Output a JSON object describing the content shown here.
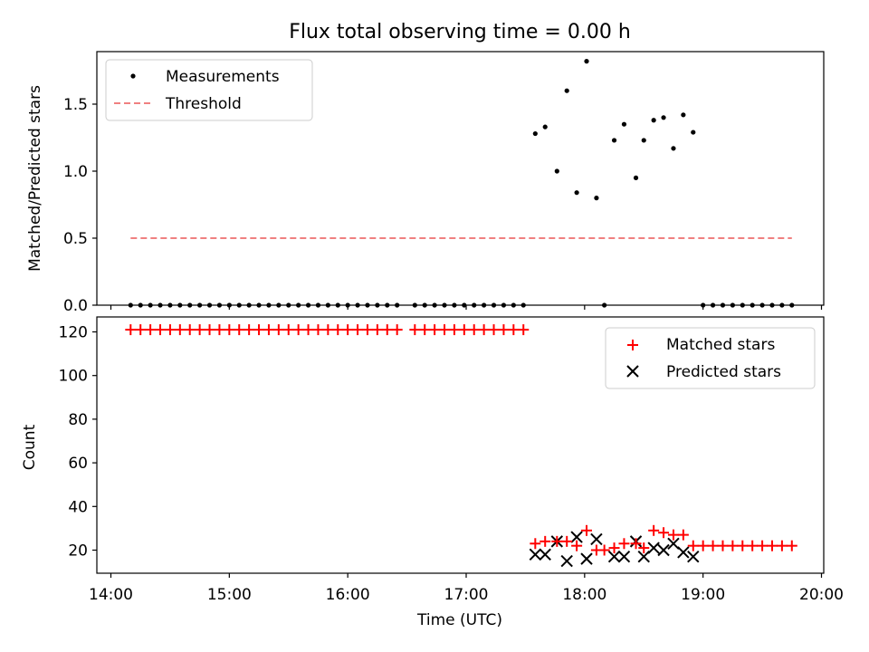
{
  "chart_data": [
    {
      "type": "scatter",
      "title": "Flux total observing time = 0.00 h",
      "xlabel": "",
      "ylabel": "Matched/Predicted stars",
      "xlim": [
        "14:00",
        "20:00"
      ],
      "ylim": [
        0,
        1.9
      ],
      "yticks": [
        0,
        0.5,
        1.0,
        1.5
      ],
      "ytick_labels": [
        "0.0",
        "0.5",
        "1.0",
        "1.5"
      ],
      "grid": false,
      "legend": "top-left",
      "series": [
        {
          "name": "Measurements",
          "style": "scatter",
          "marker": "dot",
          "color": "#000000",
          "points": [
            [
              "14:10",
              0
            ],
            [
              "14:15",
              0
            ],
            [
              "14:20",
              0
            ],
            [
              "14:25",
              0
            ],
            [
              "14:30",
              0
            ],
            [
              "14:35",
              0
            ],
            [
              "14:40",
              0
            ],
            [
              "14:45",
              0
            ],
            [
              "14:50",
              0
            ],
            [
              "14:55",
              0
            ],
            [
              "15:00",
              0
            ],
            [
              "15:05",
              0
            ],
            [
              "15:10",
              0
            ],
            [
              "15:15",
              0
            ],
            [
              "15:20",
              0
            ],
            [
              "15:25",
              0
            ],
            [
              "15:30",
              0
            ],
            [
              "15:35",
              0
            ],
            [
              "15:40",
              0
            ],
            [
              "15:45",
              0
            ],
            [
              "15:50",
              0
            ],
            [
              "15:55",
              0
            ],
            [
              "16:00",
              0
            ],
            [
              "16:05",
              0
            ],
            [
              "16:10",
              0
            ],
            [
              "16:15",
              0
            ],
            [
              "16:20",
              0
            ],
            [
              "16:25",
              0
            ],
            [
              "16:34",
              0
            ],
            [
              "16:39",
              0
            ],
            [
              "16:44",
              0
            ],
            [
              "16:49",
              0
            ],
            [
              "16:54",
              0
            ],
            [
              "16:59",
              0
            ],
            [
              "17:04",
              0
            ],
            [
              "17:09",
              0
            ],
            [
              "17:14",
              0
            ],
            [
              "17:19",
              0
            ],
            [
              "17:24",
              0
            ],
            [
              "17:29",
              0
            ],
            [
              "17:35",
              1.28
            ],
            [
              "17:40",
              1.33
            ],
            [
              "17:46",
              1.0
            ],
            [
              "17:51",
              1.6
            ],
            [
              "17:56",
              0.84
            ],
            [
              "18:01",
              1.82
            ],
            [
              "18:06",
              0.8
            ],
            [
              "18:10",
              0
            ],
            [
              "18:15",
              1.23
            ],
            [
              "18:20",
              1.35
            ],
            [
              "18:26",
              0.95
            ],
            [
              "18:30",
              1.23
            ],
            [
              "18:35",
              1.38
            ],
            [
              "18:40",
              1.4
            ],
            [
              "18:45",
              1.17
            ],
            [
              "18:50",
              1.42
            ],
            [
              "18:55",
              1.29
            ],
            [
              "19:00",
              0
            ],
            [
              "19:05",
              0
            ],
            [
              "19:10",
              0
            ],
            [
              "19:15",
              0
            ],
            [
              "19:20",
              0
            ],
            [
              "19:25",
              0
            ],
            [
              "19:30",
              0
            ],
            [
              "19:35",
              0
            ],
            [
              "19:40",
              0
            ],
            [
              "19:45",
              0
            ]
          ]
        },
        {
          "name": "Threshold",
          "style": "dashed-line",
          "color": "#f08080",
          "points": [
            [
              "14:10",
              0.5
            ],
            [
              "19:45",
              0.5
            ]
          ]
        }
      ]
    },
    {
      "type": "scatter",
      "title": "",
      "xlabel": "Time (UTC)",
      "ylabel": "Count",
      "xlim": [
        "14:00",
        "20:00"
      ],
      "xticks": [
        "14:00",
        "15:00",
        "16:00",
        "17:00",
        "18:00",
        "19:00",
        "20:00"
      ],
      "ylim": [
        10,
        125
      ],
      "yticks": [
        20,
        40,
        60,
        80,
        100,
        120
      ],
      "ytick_labels": [
        "20",
        "40",
        "60",
        "80",
        "100",
        "120"
      ],
      "grid": false,
      "legend": "top-right",
      "series": [
        {
          "name": "Matched stars",
          "style": "scatter",
          "marker": "plus",
          "color": "#ff0000",
          "points": [
            [
              "14:10",
              121
            ],
            [
              "14:15",
              121
            ],
            [
              "14:20",
              121
            ],
            [
              "14:25",
              121
            ],
            [
              "14:30",
              121
            ],
            [
              "14:35",
              121
            ],
            [
              "14:40",
              121
            ],
            [
              "14:45",
              121
            ],
            [
              "14:50",
              121
            ],
            [
              "14:55",
              121
            ],
            [
              "15:00",
              121
            ],
            [
              "15:05",
              121
            ],
            [
              "15:10",
              121
            ],
            [
              "15:15",
              121
            ],
            [
              "15:20",
              121
            ],
            [
              "15:25",
              121
            ],
            [
              "15:30",
              121
            ],
            [
              "15:35",
              121
            ],
            [
              "15:40",
              121
            ],
            [
              "15:45",
              121
            ],
            [
              "15:50",
              121
            ],
            [
              "15:55",
              121
            ],
            [
              "16:00",
              121
            ],
            [
              "16:05",
              121
            ],
            [
              "16:10",
              121
            ],
            [
              "16:15",
              121
            ],
            [
              "16:20",
              121
            ],
            [
              "16:25",
              121
            ],
            [
              "16:34",
              121
            ],
            [
              "16:39",
              121
            ],
            [
              "16:44",
              121
            ],
            [
              "16:49",
              121
            ],
            [
              "16:54",
              121
            ],
            [
              "16:59",
              121
            ],
            [
              "17:04",
              121
            ],
            [
              "17:09",
              121
            ],
            [
              "17:14",
              121
            ],
            [
              "17:19",
              121
            ],
            [
              "17:24",
              121
            ],
            [
              "17:29",
              121
            ],
            [
              "17:35",
              23
            ],
            [
              "17:40",
              24
            ],
            [
              "17:46",
              24
            ],
            [
              "17:51",
              24
            ],
            [
              "17:56",
              22
            ],
            [
              "18:01",
              29
            ],
            [
              "18:06",
              20
            ],
            [
              "18:10",
              20
            ],
            [
              "18:15",
              21
            ],
            [
              "18:20",
              23
            ],
            [
              "18:26",
              23
            ],
            [
              "18:30",
              21
            ],
            [
              "18:35",
              29
            ],
            [
              "18:40",
              28
            ],
            [
              "18:45",
              27
            ],
            [
              "18:50",
              27
            ],
            [
              "18:55",
              22
            ],
            [
              "19:00",
              22
            ],
            [
              "19:05",
              22
            ],
            [
              "19:10",
              22
            ],
            [
              "19:15",
              22
            ],
            [
              "19:20",
              22
            ],
            [
              "19:25",
              22
            ],
            [
              "19:30",
              22
            ],
            [
              "19:35",
              22
            ],
            [
              "19:40",
              22
            ],
            [
              "19:45",
              22
            ]
          ]
        },
        {
          "name": "Predicted stars",
          "style": "scatter",
          "marker": "x",
          "color": "#000000",
          "points": [
            [
              "17:35",
              18
            ],
            [
              "17:40",
              18
            ],
            [
              "17:46",
              24
            ],
            [
              "17:51",
              15
            ],
            [
              "17:56",
              26
            ],
            [
              "18:01",
              16
            ],
            [
              "18:06",
              25
            ],
            [
              "18:15",
              17
            ],
            [
              "18:20",
              17
            ],
            [
              "18:26",
              24
            ],
            [
              "18:30",
              17
            ],
            [
              "18:35",
              21
            ],
            [
              "18:40",
              20
            ],
            [
              "18:45",
              23
            ],
            [
              "18:50",
              19
            ],
            [
              "18:55",
              17
            ]
          ]
        }
      ]
    }
  ]
}
